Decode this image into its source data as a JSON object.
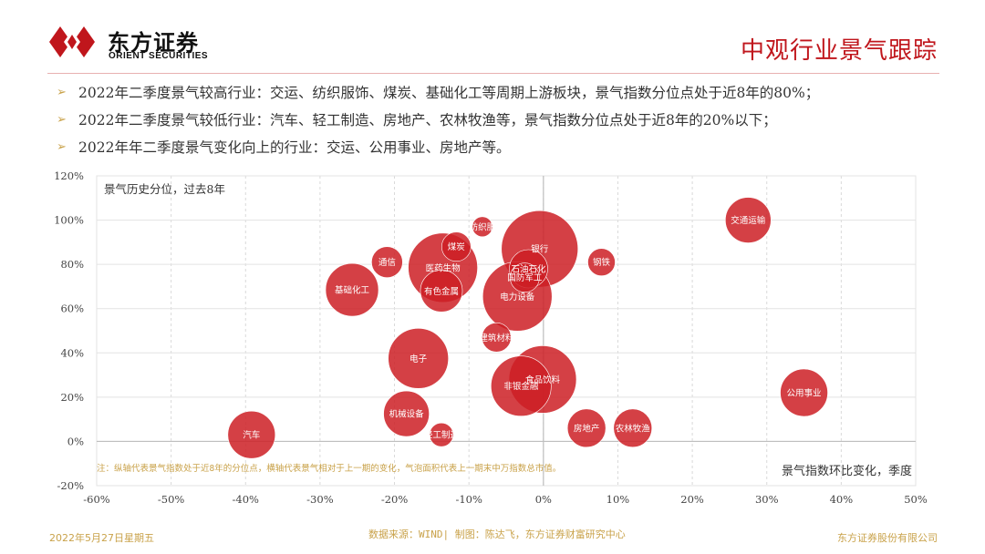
{
  "header": {
    "brand_cn": "东方证券",
    "brand_en": "ORIENT SECURITIES",
    "page_title": "中观行业景气跟踪",
    "brand_color": "#c0161c"
  },
  "bullets": [
    "2022年二季度景气较高行业：交运、纺织服饰、煤炭、基础化工等周期上游板块，景气指数分位点处于近8年的80%；",
    "2022年二季度景气较低行业：汽车、轻工制造、房地产、农林牧渔等，景气指数分位点处于近8年的20%以下；",
    "2022年年二季度景气变化向上的行业：交运、公用事业、房地产等。"
  ],
  "chart_data": {
    "type": "scatter",
    "subtype": "bubble",
    "ylabel": "景气历史分位，过去8年",
    "xlabel": "景气指数环比变化，季度",
    "note": "注：纵轴代表景气指数处于近8年的分位点，横轴代表景气相对于上一期的变化，气泡面积代表上一期末中万指数总市值。",
    "xlim": [
      -0.6,
      0.5
    ],
    "ylim": [
      -0.2,
      1.2
    ],
    "x_ticks": [
      "-60%",
      "-50%",
      "-40%",
      "-30%",
      "-20%",
      "-10%",
      "0%",
      "10%",
      "20%",
      "30%",
      "40%",
      "50%"
    ],
    "y_ticks": [
      "120%",
      "100%",
      "80%",
      "60%",
      "40%",
      "20%",
      "0%",
      "-20%"
    ],
    "bubble_color": "#cc1f24",
    "points": [
      {
        "label": "交通运输",
        "x": 0.275,
        "y": 1.0,
        "size": 25
      },
      {
        "label": "纺织服",
        "x": -0.082,
        "y": 0.97,
        "size": 11
      },
      {
        "label": "银行",
        "x": -0.005,
        "y": 0.87,
        "size": 42
      },
      {
        "label": "煤炭",
        "x": -0.117,
        "y": 0.88,
        "size": 16
      },
      {
        "label": "钢铁",
        "x": 0.078,
        "y": 0.81,
        "size": 15
      },
      {
        "label": "通信",
        "x": -0.21,
        "y": 0.81,
        "size": 17
      },
      {
        "label": "医药生物",
        "x": -0.135,
        "y": 0.785,
        "size": 38
      },
      {
        "label": "石油石化",
        "x": -0.02,
        "y": 0.78,
        "size": 21
      },
      {
        "label": "国防军工",
        "x": -0.025,
        "y": 0.74,
        "size": 16
      },
      {
        "label": "基础化工",
        "x": -0.257,
        "y": 0.685,
        "size": 29
      },
      {
        "label": "有色金属",
        "x": -0.137,
        "y": 0.68,
        "size": 23
      },
      {
        "label": "电力设备",
        "x": -0.035,
        "y": 0.655,
        "size": 38
      },
      {
        "label": "建筑材料",
        "x": -0.063,
        "y": 0.47,
        "size": 16
      },
      {
        "label": "电子",
        "x": -0.168,
        "y": 0.375,
        "size": 33
      },
      {
        "label": "食品饮料",
        "x": -0.001,
        "y": 0.28,
        "size": 37
      },
      {
        "label": "非银金融",
        "x": -0.03,
        "y": 0.25,
        "size": 33
      },
      {
        "label": "公用事业",
        "x": 0.35,
        "y": 0.22,
        "size": 26
      },
      {
        "label": "机械设备",
        "x": -0.184,
        "y": 0.125,
        "size": 25
      },
      {
        "label": "房地产",
        "x": 0.058,
        "y": 0.06,
        "size": 21
      },
      {
        "label": "农林牧渔",
        "x": 0.12,
        "y": 0.06,
        "size": 21
      },
      {
        "label": "轻工制造",
        "x": -0.137,
        "y": 0.03,
        "size": 13
      },
      {
        "label": "汽车",
        "x": -0.392,
        "y": 0.03,
        "size": 26
      }
    ]
  },
  "footer": {
    "date": "2022年5月27日星期五",
    "source": "数据来源：WIND| 制图：陈达飞，东方证券财富研究中心",
    "company": "东方证券股份有限公司"
  }
}
